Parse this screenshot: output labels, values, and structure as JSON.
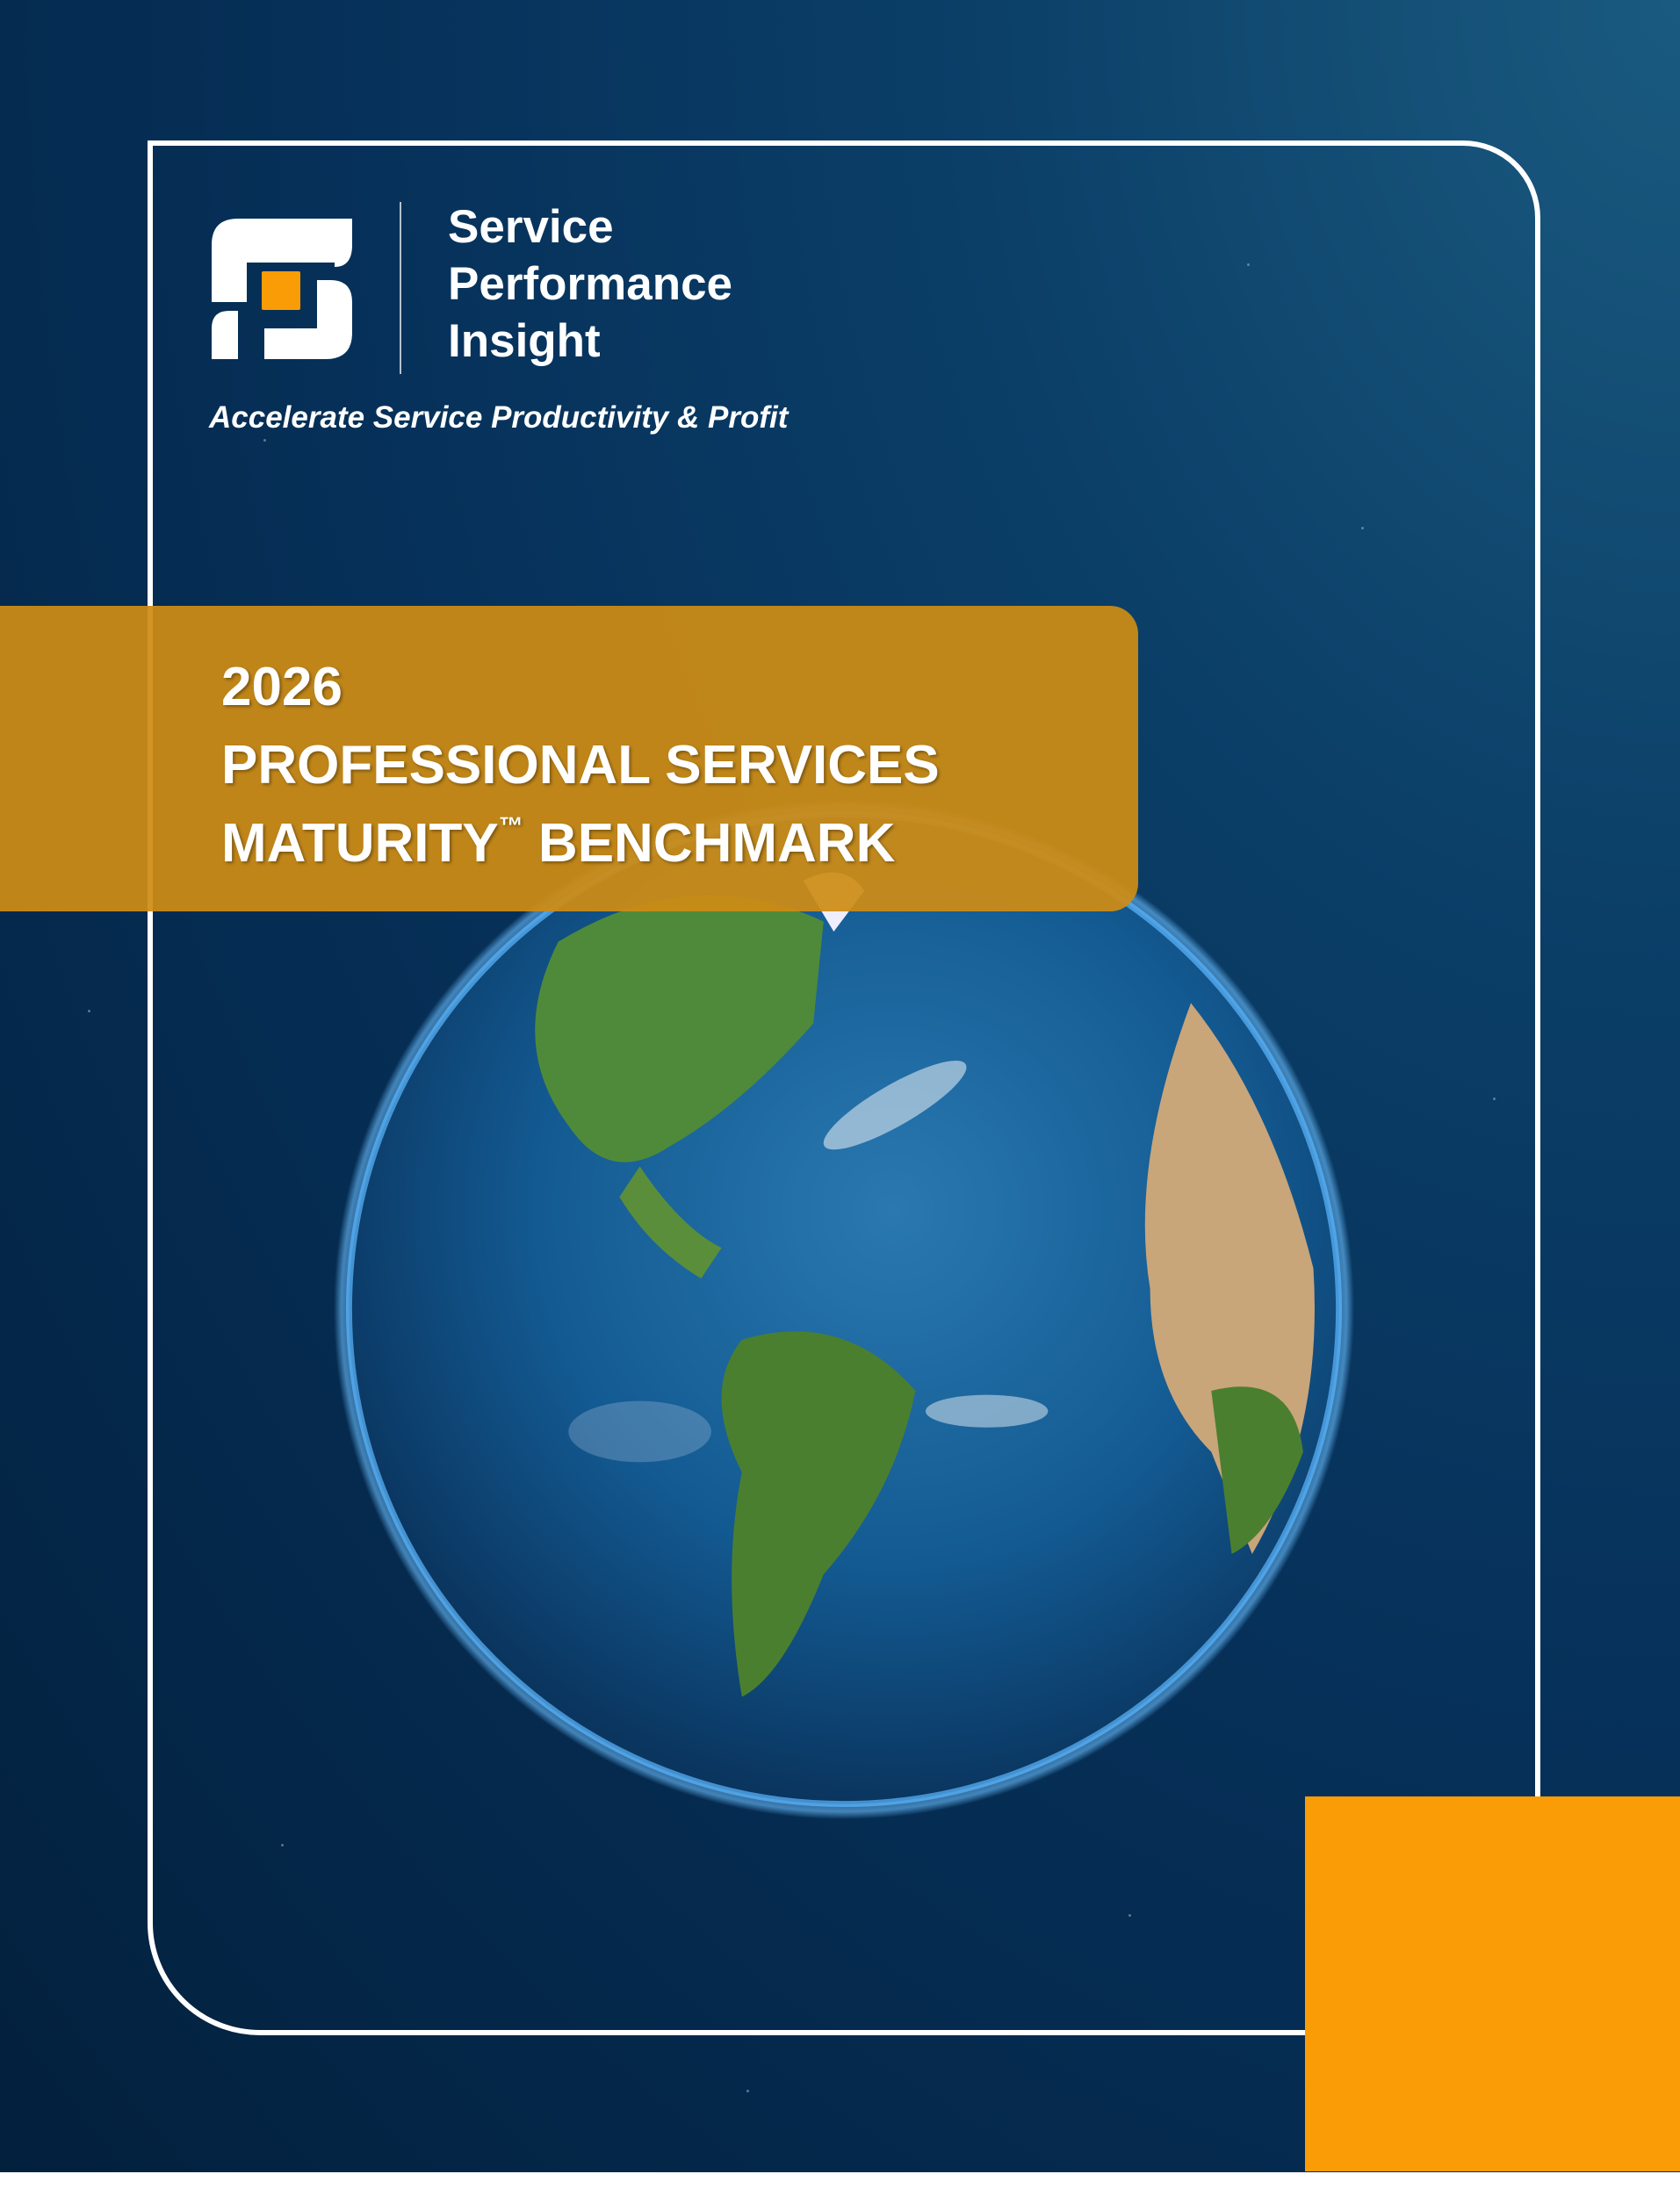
{
  "brand": {
    "line1": "Service",
    "line2": "Performance",
    "line3": "Insight",
    "tagline": "Accelerate Service Productivity & Profit"
  },
  "title": {
    "year": "2026",
    "line2": "PROFESSIONAL SERVICES",
    "line3_main": "MATURITY",
    "line3_tm": "™",
    "line3_end": " BENCHMARK"
  },
  "colors": {
    "accent": "#fa9c06",
    "banner": "#ce8c14",
    "navy": "#06315a"
  }
}
